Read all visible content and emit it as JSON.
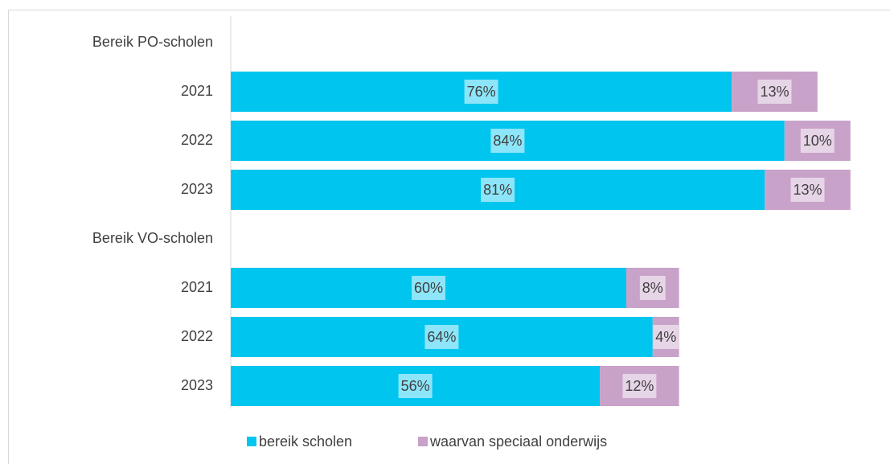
{
  "chart_data": {
    "type": "bar",
    "orientation": "horizontal",
    "stacked": true,
    "categories": [
      "Bereik PO-scholen",
      "2021",
      "2022",
      "2023",
      "Bereik VO-scholen",
      "2021",
      "2022",
      "2023"
    ],
    "series": [
      {
        "name": "bereik scholen",
        "color": "#00c5ef",
        "values": [
          null,
          76,
          84,
          81,
          null,
          60,
          64,
          56
        ],
        "value_labels": [
          null,
          "76%",
          "84%",
          "81%",
          null,
          "60%",
          "64%",
          "56%"
        ]
      },
      {
        "name": "waarvan speciaal onderwijs",
        "color": "#c8a2c8",
        "values": [
          null,
          13,
          10,
          13,
          null,
          8,
          4,
          12
        ],
        "value_labels": [
          null,
          "13%",
          "10%",
          "13%",
          null,
          "8%",
          "4%",
          "12%"
        ]
      }
    ],
    "xlim": [
      0,
      100
    ],
    "legend": "bottom"
  }
}
